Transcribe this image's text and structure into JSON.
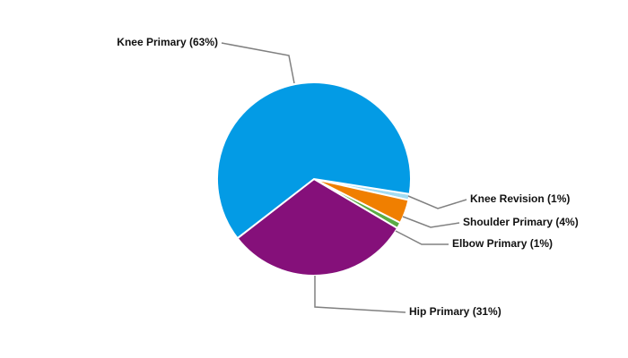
{
  "chart_data": {
    "type": "pie",
    "labels": [
      "Knee Revision (1%)",
      "Shoulder Primary (4%)",
      "Elbow Primary (1%)",
      "Hip Primary (31%)",
      "Knee Primary (63%)"
    ],
    "values": [
      1,
      4,
      1,
      31,
      63
    ],
    "colors": [
      "#a3dcf2",
      "#f07f00",
      "#5aac44",
      "#85107a",
      "#039be5"
    ]
  }
}
